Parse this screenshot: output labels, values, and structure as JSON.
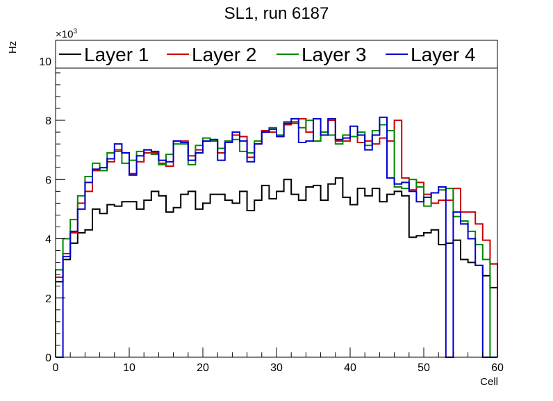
{
  "chart_data": {
    "type": "line",
    "title": "SL1, run 6187",
    "xlabel": "Cell",
    "ylabel": "Hz",
    "y_multiplier_label": "×10",
    "y_multiplier_exp": "3",
    "xlim": [
      0,
      60
    ],
    "ylim": [
      0,
      10.7
    ],
    "x_ticks": [
      0,
      10,
      20,
      30,
      40,
      50,
      60
    ],
    "y_ticks": [
      0,
      2,
      4,
      6,
      8,
      10
    ],
    "grid": false,
    "legend_position": "top",
    "bin_width": 1,
    "series": [
      {
        "name": "Layer 1",
        "color": "#000000",
        "values": [
          2.55,
          3.3,
          3.85,
          4.2,
          4.3,
          5.0,
          4.85,
          5.15,
          5.1,
          5.25,
          5.25,
          5.0,
          5.3,
          5.6,
          5.45,
          4.9,
          5.05,
          5.5,
          5.6,
          5.0,
          5.2,
          5.5,
          5.5,
          5.3,
          5.2,
          5.6,
          4.95,
          5.3,
          5.8,
          5.35,
          5.6,
          6.0,
          5.5,
          5.3,
          5.75,
          5.8,
          5.3,
          5.85,
          6.05,
          5.4,
          5.15,
          5.7,
          5.45,
          5.7,
          5.25,
          5.5,
          5.6,
          5.45,
          4.05,
          4.1,
          4.2,
          4.3,
          3.8,
          3.85,
          3.95,
          3.3,
          3.2,
          3.1,
          2.75,
          2.35
        ]
      },
      {
        "name": "Layer 2",
        "color": "#cc0000",
        "values": [
          2.7,
          3.5,
          4.2,
          5.2,
          5.6,
          6.3,
          6.3,
          6.6,
          7.0,
          6.9,
          6.2,
          6.6,
          6.9,
          6.9,
          6.55,
          6.45,
          7.3,
          7.3,
          6.8,
          7.0,
          7.3,
          7.3,
          6.9,
          7.3,
          7.5,
          7.45,
          6.75,
          7.2,
          7.65,
          7.6,
          7.45,
          7.85,
          7.9,
          8.05,
          7.6,
          7.3,
          7.6,
          8.0,
          7.3,
          7.3,
          7.45,
          7.25,
          7.3,
          7.2,
          7.4,
          7.3,
          8.0,
          6.05,
          5.65,
          5.9,
          5.5,
          5.2,
          5.3,
          5.3,
          5.7,
          4.9,
          4.9,
          4.5,
          3.95,
          3.15
        ]
      },
      {
        "name": "Layer 3",
        "color": "#008800",
        "values": [
          2.95,
          4.0,
          4.65,
          5.45,
          6.1,
          6.55,
          6.3,
          6.9,
          6.95,
          6.55,
          6.65,
          6.95,
          7.0,
          6.85,
          6.5,
          6.85,
          7.2,
          7.2,
          6.5,
          7.15,
          7.4,
          7.3,
          7.05,
          7.3,
          7.35,
          6.95,
          6.9,
          7.3,
          7.6,
          7.75,
          7.5,
          7.95,
          7.95,
          7.75,
          8.0,
          7.3,
          7.6,
          7.5,
          7.2,
          7.5,
          7.45,
          7.6,
          7.15,
          7.65,
          7.85,
          7.65,
          5.75,
          5.7,
          6.0,
          5.75,
          5.1,
          5.55,
          5.65,
          5.7,
          4.75,
          4.6,
          4.25,
          3.8,
          3.3,
          0
        ]
      },
      {
        "name": "Layer 4",
        "color": "#0000cc",
        "values": [
          0,
          3.4,
          4.25,
          5.0,
          5.9,
          6.35,
          6.4,
          6.7,
          7.2,
          6.9,
          6.15,
          6.8,
          7.0,
          6.95,
          6.65,
          6.6,
          7.3,
          7.25,
          6.65,
          6.9,
          7.3,
          7.35,
          6.65,
          7.25,
          7.6,
          7.3,
          6.6,
          7.2,
          7.6,
          7.7,
          7.45,
          7.9,
          8.05,
          7.25,
          7.3,
          8.05,
          7.5,
          8.05,
          7.35,
          7.4,
          7.8,
          7.5,
          7.0,
          7.5,
          8.1,
          6.05,
          5.85,
          5.9,
          5.6,
          5.25,
          5.4,
          5.55,
          5.75,
          0,
          4.9,
          4.5,
          4.0,
          3.1,
          0,
          0
        ]
      }
    ]
  }
}
